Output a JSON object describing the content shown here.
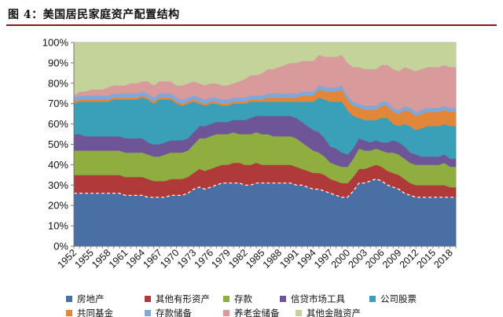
{
  "figure_title": "图 4：美国居民家庭资产配置结构",
  "chart_data": {
    "type": "area",
    "stacked": true,
    "years": [
      1952,
      1953,
      1954,
      1955,
      1956,
      1957,
      1958,
      1959,
      1960,
      1961,
      1962,
      1963,
      1964,
      1965,
      1966,
      1967,
      1968,
      1969,
      1970,
      1971,
      1972,
      1973,
      1974,
      1975,
      1976,
      1977,
      1978,
      1979,
      1980,
      1981,
      1982,
      1983,
      1984,
      1985,
      1986,
      1987,
      1988,
      1989,
      1990,
      1991,
      1992,
      1993,
      1994,
      1995,
      1996,
      1997,
      1998,
      1999,
      2000,
      2001,
      2002,
      2003,
      2004,
      2005,
      2006,
      2007,
      2008,
      2009,
      2010,
      2011,
      2012,
      2013,
      2014,
      2015,
      2016,
      2017,
      2018,
      2019
    ],
    "x_tick_labels": [
      "1952",
      "1955",
      "1958",
      "1961",
      "1964",
      "1967",
      "1970",
      "1973",
      "1976",
      "1979",
      "1982",
      "1985",
      "1988",
      "1991",
      "1994",
      "1997",
      "2000",
      "2003",
      "2006",
      "2009",
      "2012",
      "2015",
      "2018"
    ],
    "y_tick_labels": [
      "0%",
      "10%",
      "20%",
      "30%",
      "40%",
      "50%",
      "60%",
      "70%",
      "80%",
      "90%",
      "100%"
    ],
    "ylim": [
      0,
      100
    ],
    "series": [
      {
        "name": "房地产",
        "color": "#4a6fa5",
        "values": [
          26,
          26,
          26,
          26,
          26,
          26,
          26,
          26,
          26,
          25,
          25,
          25,
          25,
          24,
          24,
          24,
          24,
          25,
          25,
          25,
          26,
          28,
          29,
          28,
          29,
          30,
          31,
          31,
          31,
          31,
          30,
          30,
          31,
          31,
          31,
          31,
          31,
          31,
          31,
          30,
          30,
          29,
          28,
          28,
          27,
          26,
          25,
          24,
          24,
          27,
          31,
          31,
          32,
          33,
          32,
          30,
          29,
          28,
          26,
          25,
          24,
          24,
          24,
          24,
          24,
          24,
          24,
          24
        ]
      },
      {
        "name": "其他有形资产",
        "color": "#b0393a",
        "values": [
          9,
          9,
          9,
          9,
          9,
          9,
          9,
          9,
          9,
          9,
          9,
          9,
          9,
          9,
          8,
          8,
          8,
          8,
          8,
          8,
          8,
          8,
          9,
          9,
          9,
          9,
          9,
          9,
          10,
          10,
          10,
          10,
          10,
          9,
          9,
          9,
          9,
          9,
          9,
          9,
          8,
          8,
          8,
          8,
          8,
          7,
          7,
          7,
          7,
          7,
          7,
          7,
          7,
          7,
          7,
          7,
          7,
          7,
          7,
          6,
          6,
          6,
          6,
          6,
          6,
          6,
          5,
          5
        ]
      },
      {
        "name": "存款",
        "color": "#8fae3f",
        "values": [
          12,
          12,
          12,
          12,
          12,
          12,
          12,
          12,
          12,
          12,
          12,
          12,
          12,
          12,
          12,
          12,
          13,
          13,
          13,
          13,
          13,
          14,
          15,
          16,
          16,
          16,
          15,
          15,
          15,
          14,
          15,
          15,
          15,
          15,
          15,
          14,
          14,
          14,
          14,
          14,
          13,
          12,
          11,
          10,
          9,
          8,
          8,
          8,
          8,
          9,
          10,
          9,
          8,
          8,
          8,
          9,
          10,
          10,
          10,
          10,
          10,
          10,
          10,
          10,
          10,
          11,
          10,
          10
        ]
      },
      {
        "name": "信贷市场工具",
        "color": "#6e5598",
        "values": [
          8,
          8,
          7,
          7,
          7,
          7,
          7,
          7,
          7,
          7,
          7,
          7,
          7,
          6,
          6,
          6,
          6,
          6,
          6,
          6,
          6,
          6,
          6,
          6,
          6,
          6,
          6,
          6,
          6,
          7,
          7,
          8,
          8,
          9,
          9,
          10,
          10,
          10,
          10,
          10,
          10,
          10,
          10,
          10,
          9,
          8,
          8,
          7,
          6,
          5,
          5,
          5,
          4,
          4,
          4,
          5,
          6,
          6,
          6,
          5,
          5,
          4,
          4,
          4,
          4,
          4,
          4,
          4
        ]
      },
      {
        "name": "公司股票",
        "color": "#3a9fb8",
        "values": [
          15,
          16,
          17,
          17,
          17,
          17,
          17,
          18,
          18,
          19,
          19,
          19,
          20,
          21,
          20,
          22,
          21,
          20,
          18,
          17,
          17,
          15,
          11,
          10,
          10,
          9,
          8,
          8,
          8,
          8,
          8,
          8,
          7,
          7,
          7,
          7,
          7,
          7,
          7,
          8,
          10,
          12,
          14,
          17,
          19,
          22,
          23,
          25,
          22,
          16,
          10,
          10,
          11,
          10,
          12,
          12,
          8,
          8,
          11,
          13,
          12,
          14,
          15,
          15,
          15,
          15,
          16,
          16
        ]
      },
      {
        "name": "共同基金",
        "color": "#e2873a",
        "values": [
          1,
          1,
          1,
          1,
          1,
          1,
          1,
          1,
          1,
          1,
          1,
          1,
          1,
          1,
          1,
          1,
          1,
          1,
          1,
          1,
          1,
          1,
          1,
          1,
          1,
          1,
          1,
          1,
          1,
          1,
          1,
          1,
          1,
          1,
          2,
          2,
          2,
          2,
          2,
          2,
          3,
          3,
          3,
          4,
          4,
          5,
          5,
          6,
          5,
          5,
          5,
          5,
          5,
          5,
          6,
          6,
          6,
          6,
          7,
          7,
          7,
          7,
          7,
          7,
          7,
          7,
          7,
          7
        ]
      },
      {
        "name": "存款储备",
        "color": "#7fa8d8",
        "values": [
          2,
          2,
          2,
          2,
          2,
          2,
          2,
          2,
          2,
          2,
          2,
          2,
          2,
          2,
          2,
          2,
          2,
          2,
          2,
          2,
          2,
          2,
          2,
          2,
          2,
          2,
          2,
          2,
          2,
          2,
          2,
          2,
          2,
          2,
          2,
          2,
          2,
          2,
          2,
          2,
          2,
          2,
          2,
          2,
          2,
          2,
          2,
          2,
          2,
          2,
          2,
          2,
          2,
          2,
          2,
          2,
          2,
          2,
          2,
          2,
          2,
          2,
          2,
          2,
          2,
          2,
          2,
          2
        ]
      },
      {
        "name": "养老金储备",
        "color": "#d99a9c",
        "values": [
          1,
          2,
          2,
          3,
          3,
          3,
          4,
          4,
          4,
          4,
          5,
          5,
          5,
          6,
          6,
          6,
          6,
          6,
          6,
          7,
          7,
          7,
          7,
          7,
          7,
          7,
          7,
          7,
          7,
          8,
          9,
          10,
          10,
          11,
          12,
          12,
          13,
          14,
          15,
          15,
          15,
          15,
          15,
          15,
          15,
          15,
          15,
          15,
          16,
          17,
          18,
          18,
          18,
          18,
          18,
          18,
          19,
          19,
          19,
          19,
          20,
          20,
          20,
          20,
          20,
          20,
          20,
          20
        ]
      },
      {
        "name": "其他金融资产",
        "color": "#c3d39a",
        "values": [
          26,
          24,
          24,
          23,
          23,
          23,
          22,
          21,
          21,
          21,
          20,
          20,
          19,
          19,
          21,
          19,
          19,
          19,
          21,
          21,
          20,
          19,
          20,
          21,
          20,
          20,
          21,
          21,
          20,
          19,
          18,
          16,
          16,
          15,
          13,
          13,
          12,
          11,
          10,
          10,
          9,
          9,
          9,
          6,
          7,
          7,
          7,
          6,
          10,
          12,
          12,
          13,
          13,
          13,
          11,
          11,
          13,
          14,
          12,
          13,
          14,
          13,
          12,
          12,
          12,
          11,
          12,
          12
        ]
      }
    ]
  }
}
